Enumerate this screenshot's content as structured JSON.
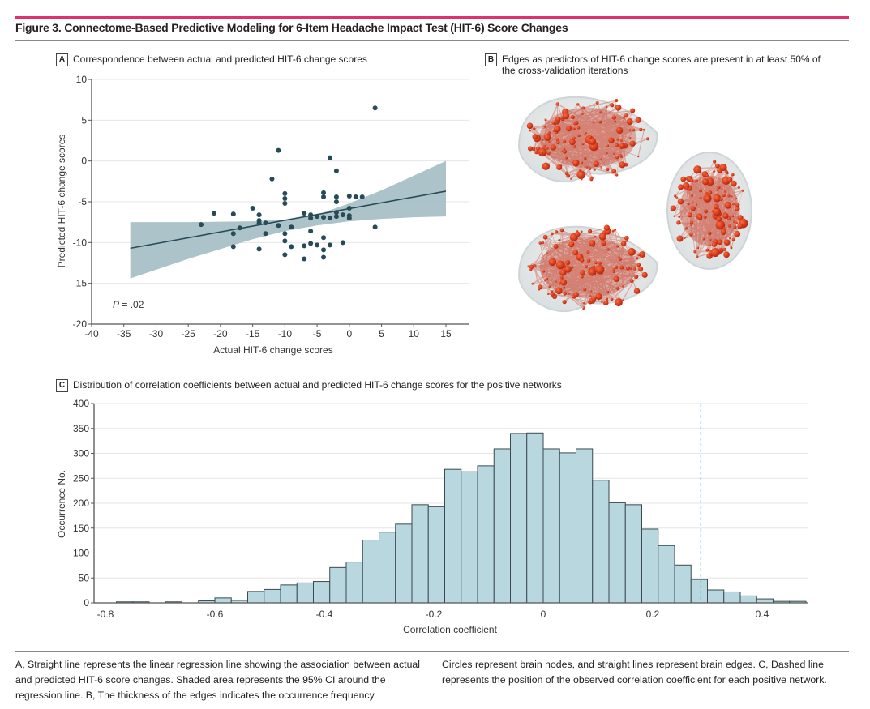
{
  "figure": {
    "title": "Figure 3. Connectome-Based Predictive Modeling for 6-Item Headache Impact Test (HIT-6) Score Changes",
    "accent_color": "#e0306e",
    "caption_left": "A, Straight line represents the linear regression line showing the association between actual and predicted HIT-6 score changes. Shaded area represents the 95% CI around the regression line. B, The thickness of the edges indicates the occurrence frequency.",
    "caption_right": "Circles represent brain nodes, and straight lines represent brain edges. C, Dashed line represents the position of the observed correlation coefficient for each positive network."
  },
  "panels": {
    "a": {
      "letter": "A",
      "title": "Correspondence between actual and predicted HIT-6 change scores"
    },
    "b": {
      "letter": "B",
      "title": "Edges as predictors of HIT-6 change scores are present in at least 50% of the cross-validation iterations",
      "node_color": "#d83a1e",
      "views": [
        "sagittal-left",
        "sagittal-right",
        "axial"
      ]
    },
    "c": {
      "letter": "C",
      "title": "Distribution of correlation coefficients between actual and predicted HIT-6 change scores for the positive networks"
    }
  },
  "chart_data": [
    {
      "id": "panel-a",
      "type": "scatter",
      "title": "Correspondence between actual and predicted HIT-6 change scores",
      "xlabel": "Actual HIT-6 change scores",
      "ylabel": "Predicted HIT-6 change scores",
      "xlim": [
        -40,
        18
      ],
      "ylim": [
        -20,
        10
      ],
      "xticks": [
        -40,
        -35,
        -30,
        -25,
        -20,
        -15,
        -10,
        -5,
        0,
        5,
        10,
        15
      ],
      "yticks": [
        10,
        5,
        0,
        -5,
        -10,
        -15,
        -20
      ],
      "grid": "horizontal",
      "annotation": "P = .02",
      "annotation_p": "P",
      "annotation_value": " = .02",
      "point_color": "#284c56",
      "ci_color": "#a9c0c7",
      "regression": {
        "x": [
          -34,
          15
        ],
        "y": [
          -10.7,
          -3.7
        ]
      },
      "ci_band": {
        "x": [
          -34,
          -25,
          -15,
          -10,
          -5,
          0,
          5,
          10,
          15
        ],
        "upper": [
          -7.5,
          -7.5,
          -7.4,
          -7.2,
          -6.6,
          -5.2,
          -3.6,
          -1.8,
          0.0
        ],
        "lower": [
          -14.4,
          -12.0,
          -9.6,
          -8.6,
          -7.9,
          -7.4,
          -7.1,
          -6.9,
          -6.8
        ]
      },
      "points": [
        [
          -23,
          -7.8
        ],
        [
          -21,
          -6.4
        ],
        [
          -18,
          -6.5
        ],
        [
          -18,
          -8.9
        ],
        [
          -18,
          -10.5
        ],
        [
          -17,
          -8.2
        ],
        [
          -15,
          -5.8
        ],
        [
          -14,
          -6.6
        ],
        [
          -14,
          -7.3
        ],
        [
          -14,
          -7.6
        ],
        [
          -14,
          -10.8
        ],
        [
          -13,
          -7.6
        ],
        [
          -13,
          -8.9
        ],
        [
          -12,
          -2.2
        ],
        [
          -11,
          1.3
        ],
        [
          -11,
          -7.9
        ],
        [
          -10,
          -4.0
        ],
        [
          -10,
          -4.6
        ],
        [
          -10,
          -5.2
        ],
        [
          -10,
          -8.9
        ],
        [
          -10,
          -9.8
        ],
        [
          -10,
          -11.5
        ],
        [
          -9,
          -8.1
        ],
        [
          -9,
          -10.5
        ],
        [
          -7,
          -6.4
        ],
        [
          -7,
          -10.4
        ],
        [
          -7,
          -12.0
        ],
        [
          -6,
          -6.6
        ],
        [
          -6,
          -7.0
        ],
        [
          -6,
          -8.6
        ],
        [
          -6,
          -10.1
        ],
        [
          -5,
          -6.8
        ],
        [
          -5,
          -10.3
        ],
        [
          -4,
          -3.9
        ],
        [
          -4,
          -4.4
        ],
        [
          -4,
          -6.9
        ],
        [
          -4,
          -9.4
        ],
        [
          -4,
          -10.9
        ],
        [
          -4,
          -11.8
        ],
        [
          -3,
          0.4
        ],
        [
          -3,
          -7.0
        ],
        [
          -3,
          -10.3
        ],
        [
          -2,
          -1.2
        ],
        [
          -2,
          -4.4
        ],
        [
          -2,
          -5.0
        ],
        [
          -2,
          -6.3
        ],
        [
          -2,
          -6.8
        ],
        [
          -1,
          -10.0
        ],
        [
          -1,
          -6.6
        ],
        [
          0,
          -4.3
        ],
        [
          0,
          -5.8
        ],
        [
          0,
          -6.7
        ],
        [
          0,
          -7.0
        ],
        [
          1,
          -4.4
        ],
        [
          2,
          -4.4
        ],
        [
          4,
          6.5
        ],
        [
          4,
          -8.1
        ]
      ]
    },
    {
      "id": "panel-c",
      "type": "bar",
      "subtype": "histogram",
      "title": "Distribution of correlation coefficients between actual and predicted HIT-6 change scores for the positive networks",
      "xlabel": "Correlation coefficient",
      "ylabel": "Occurrence No.",
      "xlim": [
        -0.83,
        0.48
      ],
      "ylim": [
        0,
        400
      ],
      "xticks": [
        -0.8,
        -0.6,
        -0.4,
        -0.2,
        0,
        0.2,
        0.4
      ],
      "xtick_labels": [
        "-0.8",
        "-0.6",
        "-0.4",
        "-0.2",
        "0",
        "0.2",
        "0.4"
      ],
      "yticks": [
        0,
        50,
        100,
        150,
        200,
        250,
        300,
        350,
        400
      ],
      "grid": "horizontal",
      "bar_color": "#b9d7df",
      "edge_color": "#3a4a50",
      "bin_width": 0.03,
      "observed_r": 0.288,
      "observed_line_color": "#3fa9d6",
      "bin_starts": [
        -0.78,
        -0.75,
        -0.69,
        -0.63,
        -0.6,
        -0.57,
        -0.54,
        -0.51,
        -0.48,
        -0.45,
        -0.42,
        -0.39,
        -0.36,
        -0.33,
        -0.3,
        -0.27,
        -0.24,
        -0.21,
        -0.18,
        -0.15,
        -0.12,
        -0.09,
        -0.06,
        -0.03,
        0.0,
        0.03,
        0.06,
        0.09,
        0.12,
        0.15,
        0.18,
        0.21,
        0.24,
        0.27,
        0.3,
        0.33,
        0.36,
        0.39,
        0.42,
        0.45
      ],
      "counts": [
        2,
        2,
        2,
        4,
        10,
        5,
        23,
        27,
        36,
        40,
        43,
        71,
        82,
        126,
        142,
        158,
        197,
        193,
        268,
        263,
        275,
        309,
        340,
        341,
        309,
        301,
        309,
        246,
        201,
        197,
        148,
        115,
        76,
        47,
        26,
        22,
        14,
        8,
        3,
        3
      ]
    }
  ]
}
